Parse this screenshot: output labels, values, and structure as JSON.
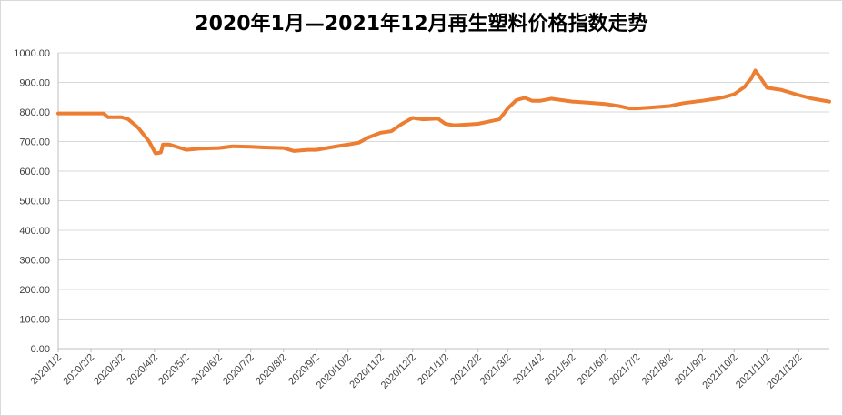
{
  "chart_data": {
    "type": "line",
    "title": "2020年1月—2021年12月再生塑料价格指数走势",
    "xlabel": "",
    "ylabel": "",
    "ylim": [
      0,
      1000
    ],
    "y_ticks": [
      "0.00",
      "100.00",
      "200.00",
      "300.00",
      "400.00",
      "500.00",
      "600.00",
      "700.00",
      "800.00",
      "900.00",
      "1000.00"
    ],
    "x_ticks": [
      "2020/1/2",
      "2020/2/2",
      "2020/3/2",
      "2020/4/2",
      "2020/5/2",
      "2020/6/2",
      "2020/7/2",
      "2020/8/2",
      "2020/9/2",
      "2020/10/2",
      "2020/11/2",
      "2020/12/2",
      "2021/1/2",
      "2021/2/2",
      "2021/3/2",
      "2021/4/2",
      "2021/5/2",
      "2021/6/2",
      "2021/7/2",
      "2021/8/2",
      "2021/9/2",
      "2021/10/2",
      "2021/11/2",
      "2021/12/2"
    ],
    "grid": true,
    "legend": "none",
    "color": "#ED7D31",
    "series": [
      {
        "x": [
          "2020/1/2",
          "2020/1/15",
          "2020/2/2",
          "2020/2/14",
          "2020/2/18",
          "2020/3/2",
          "2020/3/8",
          "2020/3/15",
          "2020/3/18",
          "2020/3/28",
          "2020/4/3",
          "2020/4/8",
          "2020/4/10",
          "2020/4/16",
          "2020/4/25",
          "2020/5/2",
          "2020/5/15",
          "2020/6/2",
          "2020/6/15",
          "2020/7/2",
          "2020/7/15",
          "2020/8/2",
          "2020/8/12",
          "2020/8/25",
          "2020/9/2",
          "2020/9/20",
          "2020/10/2",
          "2020/10/12",
          "2020/10/22",
          "2020/11/2",
          "2020/11/12",
          "2020/11/22",
          "2020/12/2",
          "2020/12/12",
          "2020/12/26",
          "2021/1/2",
          "2021/1/10",
          "2021/1/20",
          "2021/2/2",
          "2021/2/15",
          "2021/2/22",
          "2021/3/2",
          "2021/3/10",
          "2021/3/18",
          "2021/3/25",
          "2021/4/2",
          "2021/4/12",
          "2021/4/22",
          "2021/5/2",
          "2021/5/15",
          "2021/6/2",
          "2021/6/15",
          "2021/6/25",
          "2021/7/2",
          "2021/7/15",
          "2021/8/2",
          "2021/8/15",
          "2021/9/2",
          "2021/9/15",
          "2021/9/22",
          "2021/10/2",
          "2021/10/12",
          "2021/10/15",
          "2021/10/18",
          "2021/10/22",
          "2021/10/28",
          "2021/11/2",
          "2021/11/15",
          "2021/12/2",
          "2021/12/15",
          "2021/12/31"
        ],
        "values": [
          795,
          795,
          795,
          795,
          782,
          782,
          776,
          755,
          745,
          700,
          660,
          663,
          690,
          690,
          680,
          672,
          676,
          678,
          684,
          682,
          680,
          678,
          668,
          672,
          672,
          683,
          690,
          696,
          715,
          730,
          735,
          760,
          780,
          775,
          778,
          760,
          755,
          757,
          760,
          770,
          775,
          812,
          840,
          848,
          838,
          838,
          845,
          840,
          835,
          832,
          827,
          820,
          812,
          812,
          815,
          820,
          830,
          838,
          845,
          850,
          860,
          885,
          900,
          912,
          940,
          910,
          882,
          875,
          857,
          845,
          835
        ]
      }
    ]
  }
}
